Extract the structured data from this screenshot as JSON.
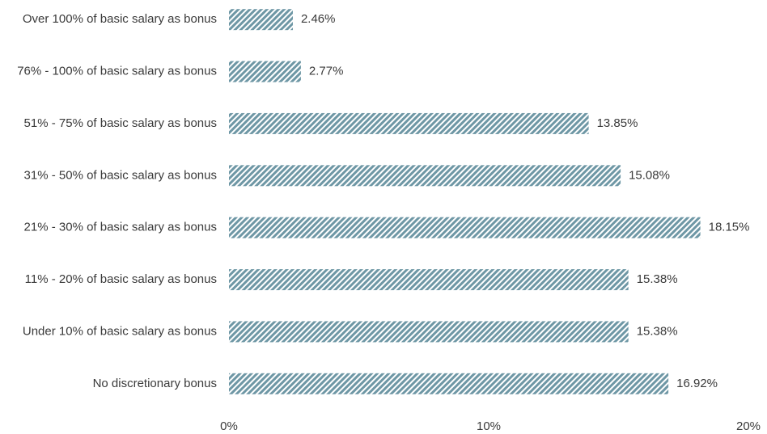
{
  "chart_data": {
    "type": "barh",
    "categories": [
      "Over 100% of basic salary as bonus",
      "76% - 100% of basic salary as bonus",
      "51% - 75% of basic salary as bonus",
      "31% - 50% of basic salary as bonus",
      "21% - 30% of basic salary as bonus",
      "11% - 20% of basic salary as bonus",
      "Under 10% of basic salary as bonus",
      "No discretionary bonus"
    ],
    "values": [
      2.46,
      2.77,
      13.85,
      15.08,
      18.15,
      15.38,
      15.38,
      16.92
    ],
    "value_labels": [
      "2.46%",
      "2.77%",
      "13.85%",
      "15.08%",
      "18.15%",
      "15.38%",
      "15.38%",
      "16.92%"
    ],
    "color": "#6e97a5",
    "xlim": [
      0,
      20
    ],
    "xticks": [
      {
        "value": 0,
        "label": "0%"
      },
      {
        "value": 10,
        "label": "10%"
      },
      {
        "value": 20,
        "label": "20%"
      }
    ],
    "grid": false
  }
}
